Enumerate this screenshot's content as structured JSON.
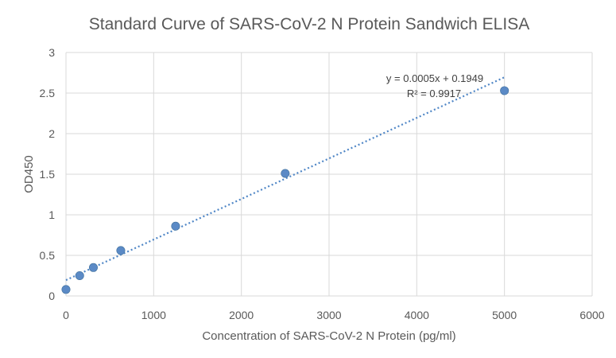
{
  "chart_data": {
    "type": "scatter",
    "title": "Standard Curve of SARS-CoV-2 N Protein  Sandwich ELISA",
    "xlabel": "Concentration of SARS-CoV-2 N Protein (pg/ml)",
    "ylabel": "OD450",
    "xlim": [
      0,
      6000
    ],
    "ylim": [
      0,
      3
    ],
    "xticks": [
      0,
      1000,
      2000,
      3000,
      4000,
      5000,
      6000
    ],
    "yticks": [
      0,
      0.5,
      1,
      1.5,
      2,
      2.5,
      3
    ],
    "grid": true,
    "series": [
      {
        "x": [
          0,
          156.25,
          312.5,
          625,
          1250,
          2500,
          5000
        ],
        "y": [
          0.08,
          0.25,
          0.35,
          0.56,
          0.86,
          1.51,
          2.53
        ]
      }
    ],
    "trendline": {
      "type": "linear",
      "slope": 0.0005,
      "intercept": 0.1949,
      "x_range": [
        0,
        5000
      ],
      "equation": "y = 0.0005x + 0.1949",
      "r_squared": "R² = 0.9917"
    },
    "colors": {
      "points": "#5b8ac6",
      "trendline": "#4f86c6"
    }
  }
}
